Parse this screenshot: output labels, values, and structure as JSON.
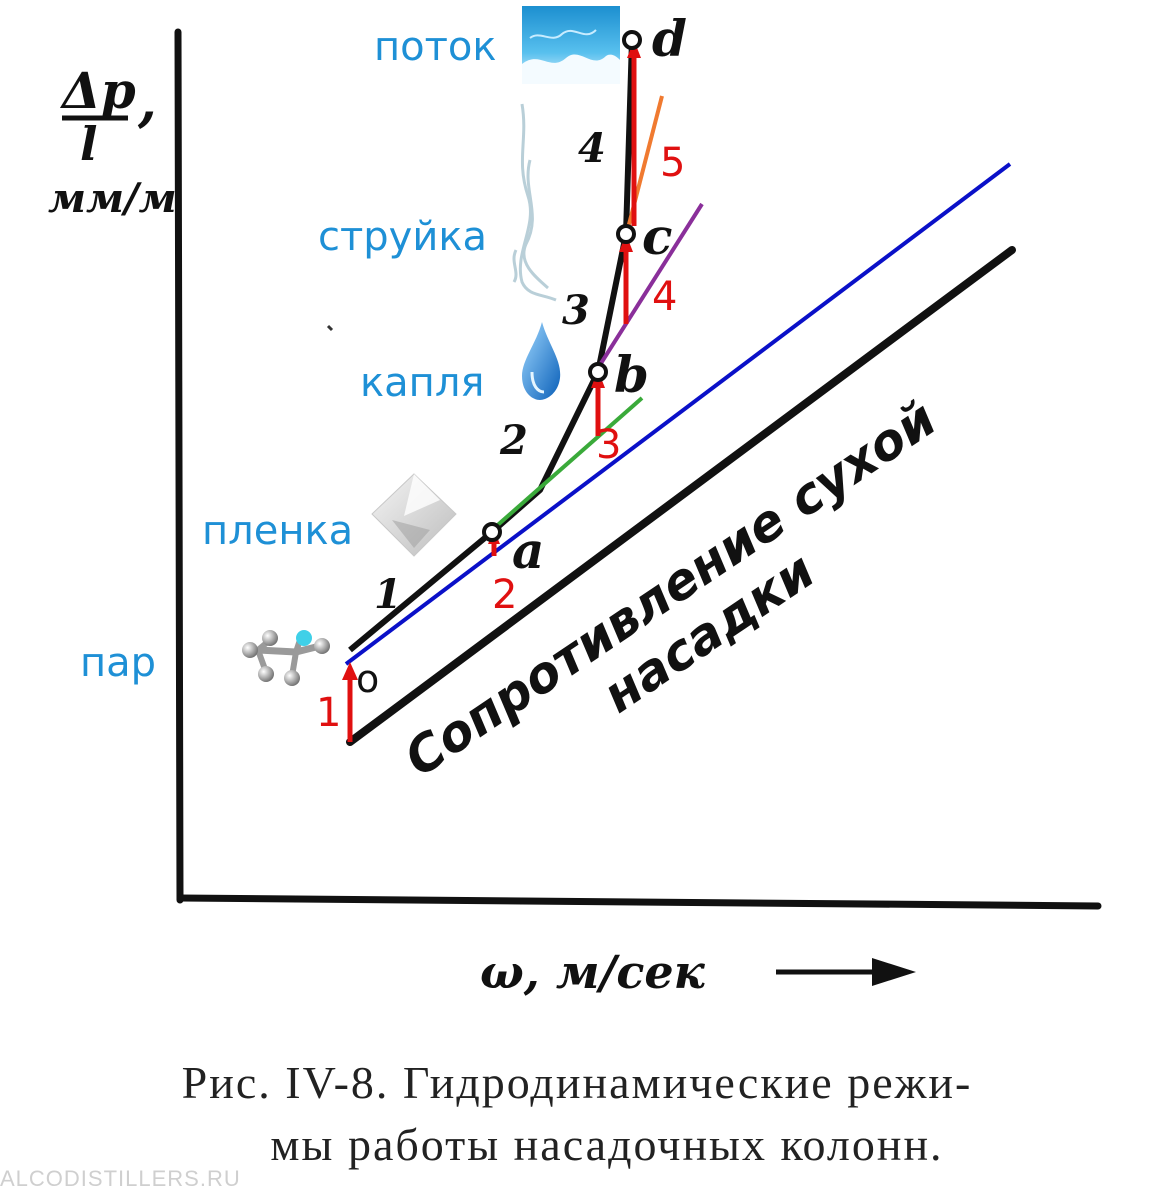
{
  "axes": {
    "y_label_num": "Δp",
    "y_label_den": "l",
    "y_label_comma": ",",
    "y_unit": "мм/м",
    "x_label": "ω, м/сек"
  },
  "dry_label": {
    "line1": "Сопротивление сухой",
    "line2": "насадки"
  },
  "points": {
    "o": "o",
    "a": "a",
    "b": "b",
    "c": "c",
    "d": "d"
  },
  "segments": [
    "1",
    "2",
    "3",
    "4"
  ],
  "regimes": {
    "vapor": "пар",
    "film": "пленка",
    "drop": "капля",
    "jet": "струйка",
    "flow": "поток"
  },
  "arrows": [
    "1",
    "2",
    "3",
    "4",
    "5"
  ],
  "caption": {
    "line1": "Рис. IV-8. Гидродинамические режи-",
    "line2": "мы работы насадочных колонн."
  },
  "watermark": "ALCODISTILLERS.RU",
  "colors": {
    "label_blue": "#1e90d6",
    "arrow_red": "#e01010",
    "line_blue": "#0a10c8",
    "tangent_green": "#3aaa3a",
    "tangent_purple": "#8a2f9a",
    "tangent_orange": "#f07a30",
    "ink": "#111111"
  }
}
